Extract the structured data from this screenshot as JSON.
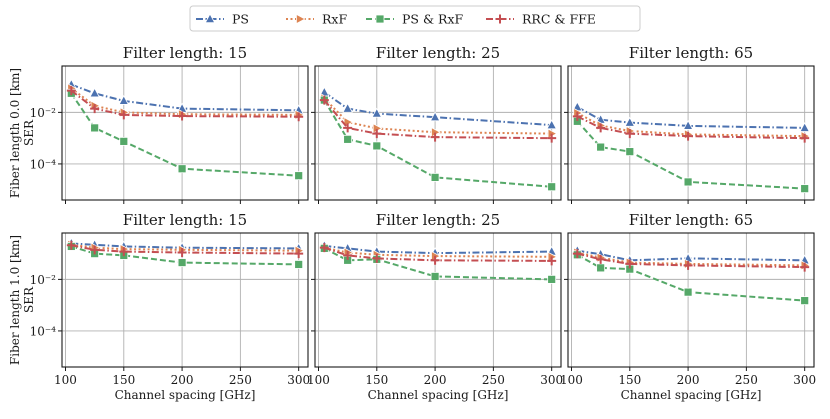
{
  "chart_data": {
    "type": "line",
    "x": [
      105,
      125,
      150,
      200,
      300
    ],
    "xlabel": "Channel spacing [GHz]",
    "xticks": [
      100,
      150,
      200,
      250,
      300
    ],
    "xlim": [
      97,
      308
    ],
    "ylabel": "SER",
    "yscale": "log",
    "ylim_log10": [
      -5.4,
      -0.2
    ],
    "yticks": [
      {
        "v": -2,
        "label": "10⁻²"
      },
      {
        "v": -4,
        "label": "10⁻⁴"
      }
    ],
    "grid": true,
    "legend_position": "top-center",
    "series_meta": [
      {
        "name": "PS",
        "color": "#4c72b0",
        "marker": "triangle",
        "dash": "dashdot"
      },
      {
        "name": "RxF",
        "color": "#dd8452",
        "marker": "triangle-right",
        "dash": "dotted"
      },
      {
        "name": "PS & RxF",
        "color": "#55a868",
        "marker": "square",
        "dash": "dashed"
      },
      {
        "name": "RRC & FFE",
        "color": "#c44e52",
        "marker": "plus",
        "dash": "dashdot"
      }
    ],
    "rows": [
      {
        "label": "Fiber length 0.0 [km]",
        "panels": [
          {
            "title": "Filter length: 15",
            "series": [
              {
                "name": "PS",
                "values": [
                  0.12,
                  0.055,
                  0.028,
                  0.014,
                  0.012
                ]
              },
              {
                "name": "RxF",
                "values": [
                  0.085,
                  0.018,
                  0.01,
                  0.0085,
                  0.008
                ]
              },
              {
                "name": "PS & RxF",
                "values": [
                  0.055,
                  0.0025,
                  0.00075,
                  6.5e-05,
                  3.5e-05
                ]
              },
              {
                "name": "RRC & FFE",
                "values": [
                  0.07,
                  0.014,
                  0.008,
                  0.0072,
                  0.0068
                ]
              }
            ]
          },
          {
            "title": "Filter length: 25",
            "series": [
              {
                "name": "PS",
                "values": [
                  0.06,
                  0.014,
                  0.009,
                  0.0065,
                  0.0032
                ]
              },
              {
                "name": "RxF",
                "values": [
                  0.035,
                  0.0042,
                  0.0024,
                  0.0017,
                  0.0015
                ]
              },
              {
                "name": "PS & RxF",
                "values": [
                  0.03,
                  0.0009,
                  0.0005,
                  3e-05,
                  1.3e-05
                ]
              },
              {
                "name": "RRC & FFE",
                "values": [
                  0.03,
                  0.0025,
                  0.0015,
                  0.0011,
                  0.001
                ]
              }
            ]
          },
          {
            "title": "Filter length: 65",
            "series": [
              {
                "name": "PS",
                "values": [
                  0.016,
                  0.0052,
                  0.004,
                  0.003,
                  0.0025
                ]
              },
              {
                "name": "RxF",
                "values": [
                  0.0095,
                  0.0031,
                  0.0019,
                  0.0014,
                  0.0012
                ]
              },
              {
                "name": "PS & RxF",
                "values": [
                  0.0045,
                  0.00045,
                  0.0003,
                  2e-05,
                  1.1e-05
                ]
              },
              {
                "name": "RRC & FFE",
                "values": [
                  0.007,
                  0.0025,
                  0.0015,
                  0.0012,
                  0.001
                ]
              }
            ]
          }
        ]
      },
      {
        "label": "Fiber length 1.0 [km]",
        "panels": [
          {
            "title": "Filter length: 15",
            "series": [
              {
                "name": "PS",
                "values": [
                  0.25,
                  0.22,
                  0.19,
                  0.17,
                  0.16
                ]
              },
              {
                "name": "RxF",
                "values": [
                  0.22,
                  0.17,
                  0.15,
                  0.14,
                  0.13
                ]
              },
              {
                "name": "PS & RxF",
                "values": [
                  0.19,
                  0.1,
                  0.085,
                  0.045,
                  0.038
                ]
              },
              {
                "name": "RRC & FFE",
                "values": [
                  0.21,
                  0.14,
                  0.12,
                  0.11,
                  0.1
                ]
              }
            ]
          },
          {
            "title": "Filter length: 25",
            "series": [
              {
                "name": "PS",
                "values": [
                  0.2,
                  0.16,
                  0.12,
                  0.105,
                  0.12
                ]
              },
              {
                "name": "RxF",
                "values": [
                  0.17,
                  0.11,
                  0.09,
                  0.08,
                  0.075
                ]
              },
              {
                "name": "PS & RxF",
                "values": [
                  0.16,
                  0.055,
                  0.06,
                  0.013,
                  0.01
                ]
              },
              {
                "name": "RRC & FFE",
                "values": [
                  0.17,
                  0.085,
                  0.065,
                  0.055,
                  0.052
                ]
              }
            ]
          },
          {
            "title": "Filter length: 65",
            "series": [
              {
                "name": "PS",
                "values": [
                  0.13,
                  0.095,
                  0.055,
                  0.065,
                  0.055
                ]
              },
              {
                "name": "RxF",
                "values": [
                  0.11,
                  0.07,
                  0.045,
                  0.04,
                  0.035
                ]
              },
              {
                "name": "PS & RxF",
                "values": [
                  0.09,
                  0.028,
                  0.025,
                  0.0032,
                  0.0015
                ]
              },
              {
                "name": "RRC & FFE",
                "values": [
                  0.1,
                  0.06,
                  0.04,
                  0.035,
                  0.03
                ]
              }
            ]
          }
        ]
      }
    ]
  }
}
